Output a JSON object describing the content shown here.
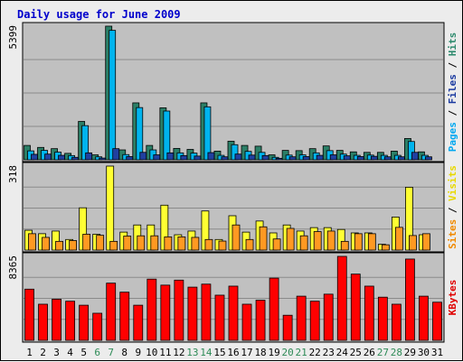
{
  "chart_data": {
    "type": "bar",
    "title": "Daily usage for June 2009",
    "days": [
      "1",
      "2",
      "3",
      "4",
      "5",
      "6",
      "7",
      "8",
      "9",
      "10",
      "11",
      "12",
      "13",
      "14",
      "15",
      "16",
      "17",
      "18",
      "19",
      "20",
      "21",
      "22",
      "23",
      "24",
      "25",
      "26",
      "27",
      "28",
      "29",
      "30",
      "31"
    ],
    "weekend_days": [
      "6",
      "7",
      "13",
      "14",
      "20",
      "21",
      "27",
      "28"
    ],
    "panels": [
      {
        "id": "top",
        "max_label": "5399",
        "ylim": [
          0,
          5399
        ],
        "legend": [
          {
            "text": "Pages",
            "color": "#00a8f0"
          },
          {
            "text": "Files",
            "color": "#1a3aa0"
          },
          {
            "text": "Hits",
            "color": "#2e8b6e"
          }
        ],
        "series": [
          {
            "name": "Hits",
            "color": "#2b7f67",
            "values": [
              580,
              500,
              450,
              260,
              1550,
              200,
              5399,
              400,
              2300,
              580,
              2100,
              460,
              420,
              2300,
              350,
              750,
              580,
              550,
              200,
              380,
              370,
              450,
              560,
              380,
              320,
              300,
              300,
              350,
              860,
              320,
              0
            ]
          },
          {
            "name": "Files",
            "color": "#00b4ee",
            "values": [
              360,
              380,
              310,
              170,
              1380,
              120,
              5230,
              210,
              2110,
              400,
              1970,
              280,
              270,
              2140,
              180,
              610,
              340,
              300,
              100,
              190,
              200,
              280,
              370,
              230,
              180,
              190,
              180,
              180,
              740,
              180,
              0
            ]
          },
          {
            "name": "Pages",
            "color": "#2040a0",
            "values": [
              220,
              230,
              180,
              100,
              280,
              70,
              450,
              130,
              300,
              200,
              280,
              170,
              150,
              290,
              120,
              230,
              190,
              170,
              60,
              120,
              130,
              180,
              200,
              160,
              130,
              140,
              120,
              120,
              300,
              120,
              0
            ]
          }
        ]
      },
      {
        "id": "middle",
        "max_label": "318",
        "ylim": [
          0,
          318
        ],
        "legend": [
          {
            "text": "Sites",
            "color": "#f08a00"
          },
          {
            "text": "Visits",
            "color": "#e8d800"
          }
        ],
        "series": [
          {
            "name": "Visits",
            "color": "#ffff33",
            "values": [
              75,
              62,
              72,
              40,
              160,
              60,
              318,
              68,
              95,
              95,
              170,
              58,
              72,
              148,
              40,
              130,
              68,
              110,
              65,
              95,
              72,
              85,
              85,
              78,
              65,
              65,
              22,
              125,
              238,
              58,
              0
            ]
          },
          {
            "name": "Sites",
            "color": "#ff9922",
            "values": [
              62,
              48,
              33,
              36,
              60,
              56,
              33,
              53,
              54,
              54,
              50,
              50,
              48,
              40,
              34,
              95,
              40,
              88,
              42,
              82,
              54,
              70,
              72,
              33,
              62,
              62,
              20,
              86,
              55,
              62,
              0
            ]
          }
        ]
      },
      {
        "id": "bottom",
        "max_label": "8365",
        "ylim": [
          0,
          8365
        ],
        "legend": [
          {
            "text": "KBytes",
            "color": "#e00000"
          }
        ],
        "series": [
          {
            "name": "KBytes",
            "color": "#ff0000",
            "values": [
              5100,
              3600,
              4100,
              3900,
              3500,
              2700,
              5700,
              4800,
              3500,
              6100,
              5500,
              6000,
              5300,
              5600,
              4500,
              5400,
              3600,
              4000,
              6200,
              2500,
              4400,
              3900,
              4600,
              8365,
              6600,
              5400,
              4300,
              3600,
              8100,
              4400,
              3800
            ]
          }
        ]
      }
    ]
  }
}
